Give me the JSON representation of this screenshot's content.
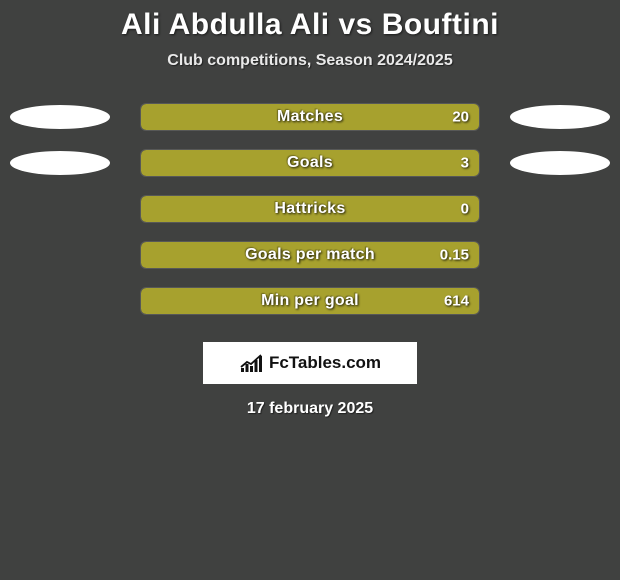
{
  "title": {
    "player1": "Ali Abdulla Ali",
    "vs": "vs",
    "player2": "Bouftini"
  },
  "subtitle": "Club competitions, Season 2024/2025",
  "colors": {
    "player1_bar": "#a7a12e",
    "player2_bar": "#7a8f3a",
    "bar_bg": "#404140",
    "placeholder_bg": "#ffffff"
  },
  "stats": [
    {
      "label": "Matches",
      "left_value": 20,
      "left_fill_pct": 100,
      "show_left_placeholder": true,
      "show_right_placeholder": true
    },
    {
      "label": "Goals",
      "left_value": 3,
      "left_fill_pct": 100,
      "show_left_placeholder": true,
      "show_right_placeholder": true
    },
    {
      "label": "Hattricks",
      "left_value": 0,
      "left_fill_pct": 100,
      "show_left_placeholder": false,
      "show_right_placeholder": false
    },
    {
      "label": "Goals per match",
      "left_value": 0.15,
      "left_fill_pct": 100,
      "show_left_placeholder": false,
      "show_right_placeholder": false
    },
    {
      "label": "Min per goal",
      "left_value": 614,
      "left_fill_pct": 100,
      "show_left_placeholder": false,
      "show_right_placeholder": false
    }
  ],
  "brand": "FcTables.com",
  "date": "17 february 2025",
  "chart_icon_bars": [
    4,
    8,
    6,
    12,
    16
  ]
}
